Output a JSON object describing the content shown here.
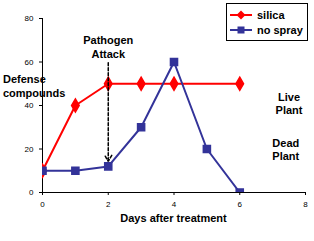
{
  "chart_data": {
    "type": "line",
    "x_label": "Days after treatment",
    "y_label": "Defense compounds",
    "xlim": [
      0,
      8
    ],
    "xticks": [
      0,
      2,
      4,
      6,
      8
    ],
    "ylim": [
      0,
      80
    ],
    "yticks": [
      0,
      20,
      40,
      60,
      80
    ],
    "legend": "top-right",
    "series": [
      {
        "name": "silica",
        "color": "#ff0000",
        "marker": "diamond",
        "x": [
          0,
          1,
          2,
          3,
          4,
          6
        ],
        "values": [
          10,
          40,
          50,
          50,
          50,
          50
        ]
      },
      {
        "name": "no spray",
        "color": "#333399",
        "marker": "square",
        "x": [
          0,
          1,
          2,
          3,
          4,
          5,
          6
        ],
        "values": [
          10,
          10,
          12,
          30,
          60,
          20,
          0
        ]
      }
    ],
    "annotations": [
      {
        "text": "Pathogen Attack",
        "x": 2,
        "y": 67,
        "arrow": true
      },
      {
        "text": "Live Plant",
        "x": 7.5,
        "y": 41
      },
      {
        "text": "Dead Plant",
        "x": 7.4,
        "y": 20
      }
    ]
  }
}
